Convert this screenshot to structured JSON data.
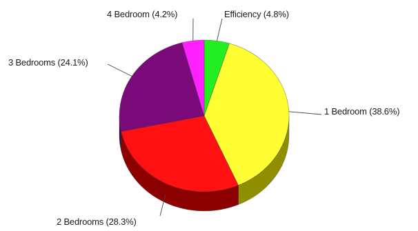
{
  "chart_data": {
    "type": "pie",
    "style": "3d",
    "title": "",
    "slices": [
      {
        "label": "Efficiency",
        "value": 4.8,
        "label_text": "Efficiency (4.8%)",
        "color": "#22ee22",
        "side_color": "#138a13"
      },
      {
        "label": "1 Bedroom",
        "value": 38.6,
        "label_text": "1 Bedroom (38.6%)",
        "color": "#ffff33",
        "side_color": "#8f8f00"
      },
      {
        "label": "2 Bedrooms",
        "value": 28.3,
        "label_text": "2 Bedrooms (28.3%)",
        "color": "#ff1111",
        "side_color": "#8c0000"
      },
      {
        "label": "3 Bedrooms",
        "value": 24.1,
        "label_text": "3 Bedrooms (24.1%)",
        "color": "#7a0a7a",
        "side_color": "#3e0440"
      },
      {
        "label": "4 Bedroom",
        "value": 4.2,
        "label_text": "4 Bedroom (4.2%)",
        "color": "#ff22ff",
        "side_color": "#8a0f8a"
      }
    ],
    "legend": "none"
  }
}
